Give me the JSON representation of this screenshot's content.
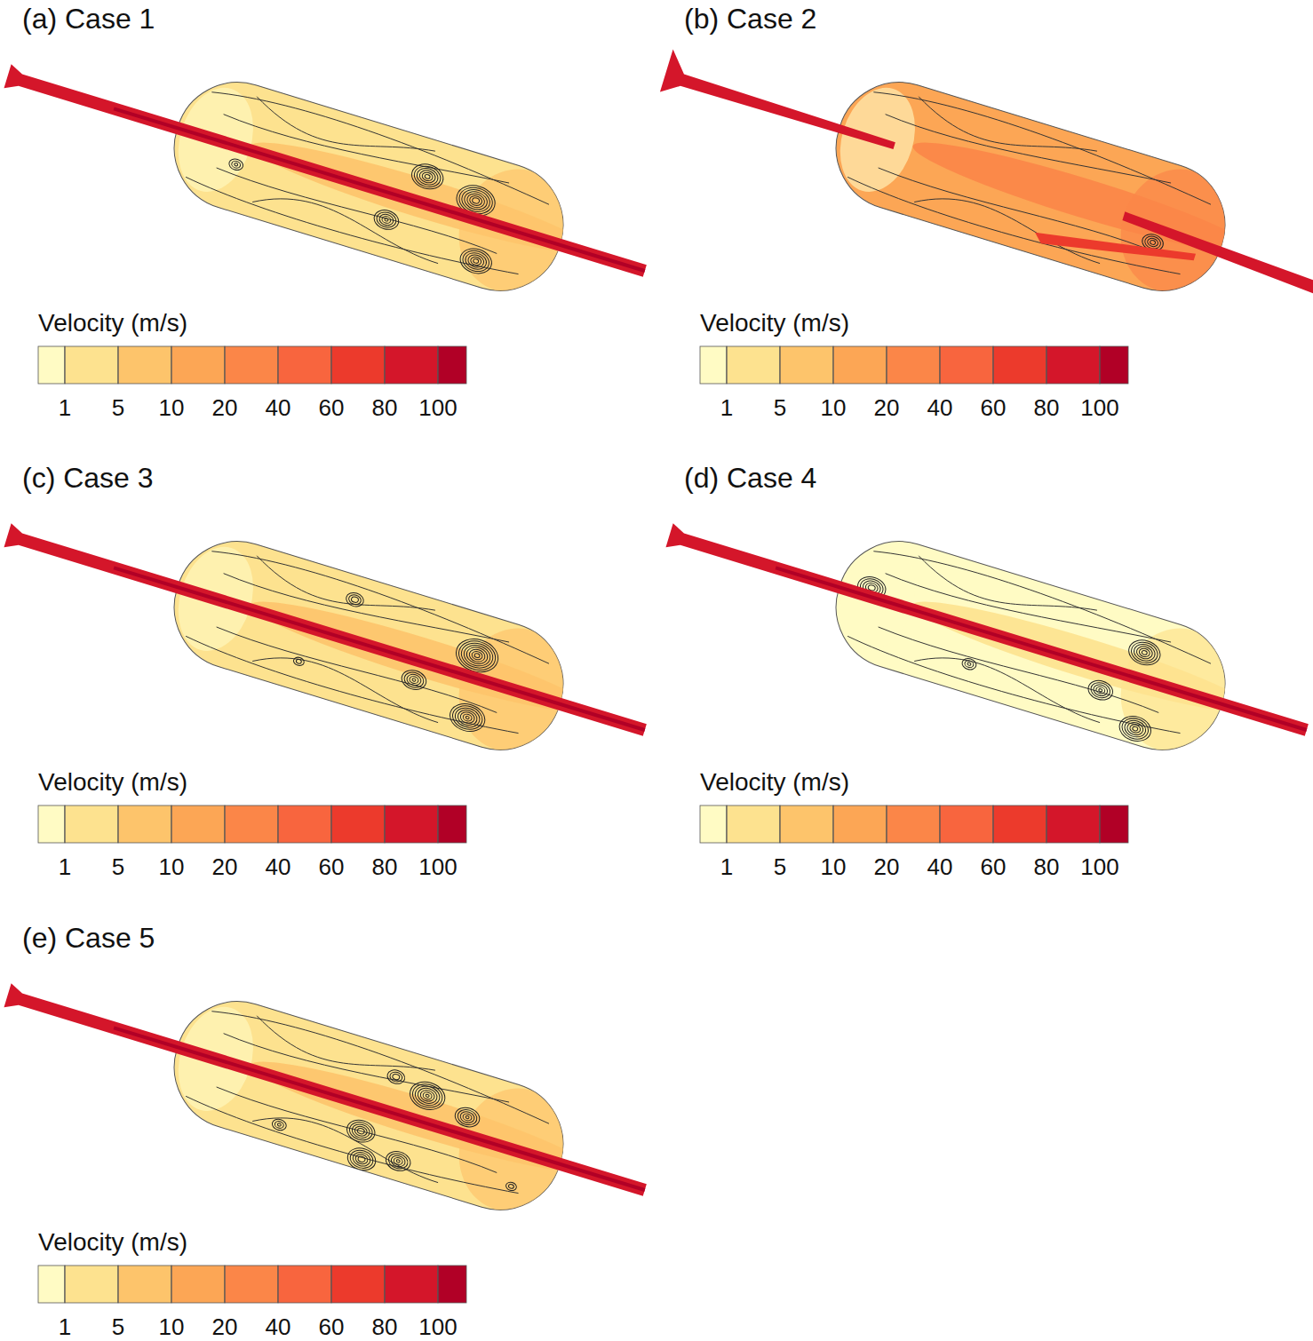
{
  "chart_data": [
    {
      "type": "contour",
      "title": "(a) Case 1",
      "colorbar": {
        "label": "Velocity (m/s)",
        "ticks": [
          1,
          5,
          10,
          20,
          40,
          60,
          80,
          100
        ],
        "colors": [
          "#fffbc4",
          "#fde28f",
          "#fdc46b",
          "#fca655",
          "#fb8648",
          "#f8653e",
          "#ec3a2c",
          "#d4162a",
          "#b10026"
        ]
      }
    },
    {
      "type": "contour",
      "title": "(b) Case 2",
      "colorbar": {
        "label": "Velocity (m/s)",
        "ticks": [
          1,
          5,
          10,
          20,
          40,
          60,
          80,
          100
        ],
        "colors": [
          "#fffbc4",
          "#fde28f",
          "#fdc46b",
          "#fca655",
          "#fb8648",
          "#f8653e",
          "#ec3a2c",
          "#d4162a",
          "#b10026"
        ]
      }
    },
    {
      "type": "contour",
      "title": "(c) Case 3",
      "colorbar": {
        "label": "Velocity (m/s)",
        "ticks": [
          1,
          5,
          10,
          20,
          40,
          60,
          80,
          100
        ],
        "colors": [
          "#fffbc4",
          "#fde28f",
          "#fdc46b",
          "#fca655",
          "#fb8648",
          "#f8653e",
          "#ec3a2c",
          "#d4162a",
          "#b10026"
        ]
      }
    },
    {
      "type": "contour",
      "title": "(d) Case 4",
      "colorbar": {
        "label": "Velocity (m/s)",
        "ticks": [
          1,
          5,
          10,
          20,
          40,
          60,
          80,
          100
        ],
        "colors": [
          "#fffbc4",
          "#fde28f",
          "#fdc46b",
          "#fca655",
          "#fb8648",
          "#f8653e",
          "#ec3a2c",
          "#d4162a",
          "#b10026"
        ]
      }
    },
    {
      "type": "contour",
      "title": "(e) Case 5",
      "colorbar": {
        "label": "Velocity (m/s)",
        "ticks": [
          1,
          5,
          10,
          20,
          40,
          60,
          80,
          100
        ],
        "colors": [
          "#fffbc4",
          "#fde28f",
          "#fdc46b",
          "#fca655",
          "#fb8648",
          "#f8653e",
          "#ec3a2c",
          "#d4162a",
          "#b10026"
        ]
      }
    }
  ]
}
